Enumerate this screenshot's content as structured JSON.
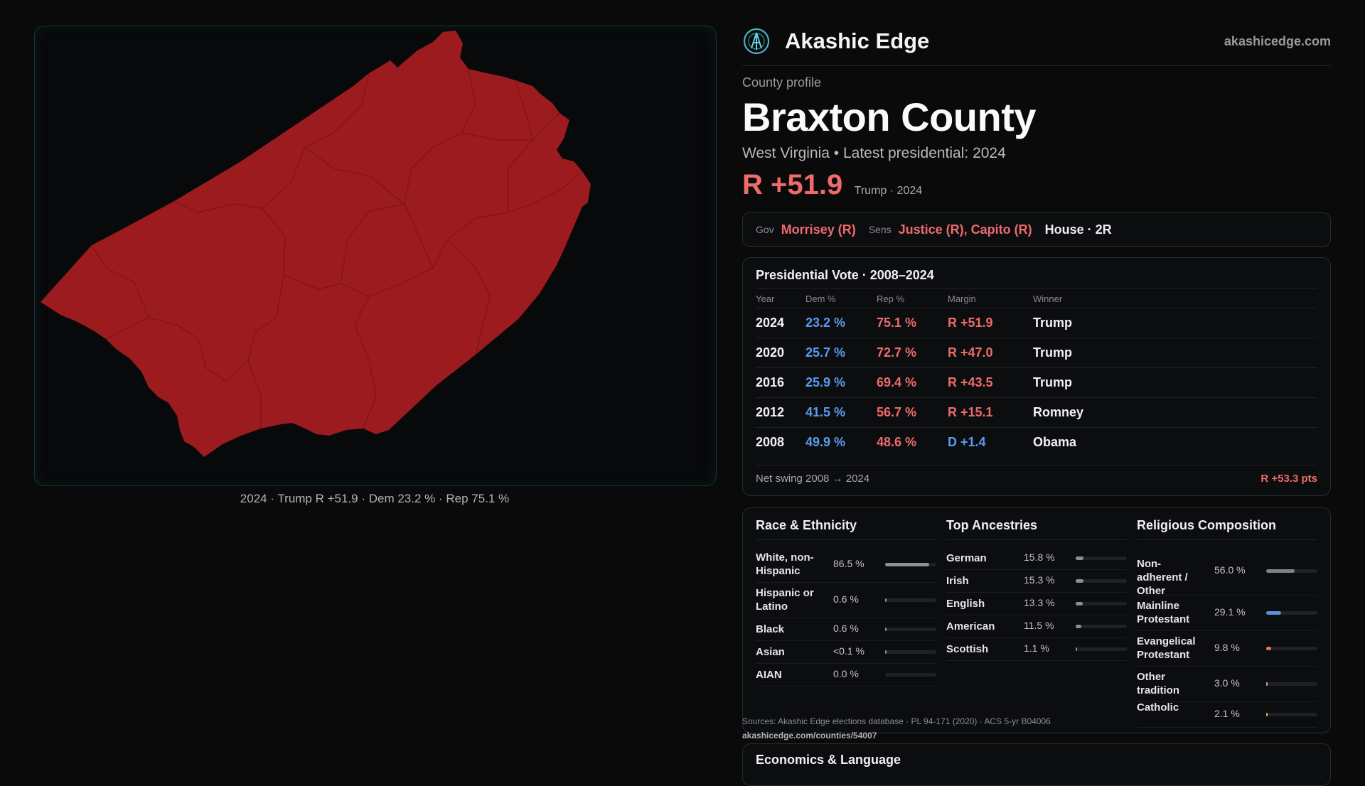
{
  "map": {
    "caption": "2024 · Trump R +51.9 · Dem 23.2 % · Rep 75.1 %",
    "fill_color": "#9b1b1f"
  },
  "brand": {
    "name": "Akashic Edge",
    "site": "akashicedge.com",
    "logo_icon": "akashic-logo-icon"
  },
  "profile": {
    "eyebrow": "County profile",
    "county": "Braxton County",
    "subtitle": "West Virginia • Latest presidential: 2024",
    "headline_margin": "R +51.9",
    "headline_winner": "Trump · 2024"
  },
  "officials": {
    "gov_label": "Gov",
    "gov": "Morrisey (R)",
    "sens_label": "Sens",
    "sens": "Justice (R), Capito (R)",
    "house": "House · 2R"
  },
  "presidential": {
    "title": "Presidential Vote · 2008–2024",
    "headers": [
      "Year",
      "Dem %",
      "Rep %",
      "Margin",
      "Winner"
    ],
    "rows": [
      {
        "year": "2024",
        "dem": "23.2 %",
        "rep": "75.1 %",
        "margin": "R +51.9",
        "party": "R",
        "winner": "Trump"
      },
      {
        "year": "2020",
        "dem": "25.7 %",
        "rep": "72.7 %",
        "margin": "R +47.0",
        "party": "R",
        "winner": "Trump"
      },
      {
        "year": "2016",
        "dem": "25.9 %",
        "rep": "69.4 %",
        "margin": "R +43.5",
        "party": "R",
        "winner": "Trump"
      },
      {
        "year": "2012",
        "dem": "41.5 %",
        "rep": "56.7 %",
        "margin": "R +15.1",
        "party": "R",
        "winner": "Romney"
      },
      {
        "year": "2008",
        "dem": "49.9 %",
        "rep": "48.6 %",
        "margin": "D +1.4",
        "party": "D",
        "winner": "Obama"
      }
    ],
    "swing_label": "Net swing 2008 → 2024",
    "swing_value": "R +53.3 pts"
  },
  "race": {
    "title": "Race & Ethnicity",
    "items": [
      {
        "label": "White, non-Hispanic",
        "value": "86.5 %",
        "pct": 86.5,
        "color": "#8d8f96"
      },
      {
        "label": "Hispanic or Latino",
        "value": "0.6 %",
        "pct": 0.6,
        "color": "#8d8f96"
      },
      {
        "label": "Black",
        "value": "0.6 %",
        "pct": 0.6,
        "color": "#8d8f96"
      },
      {
        "label": "Asian",
        "value": "<0.1 %",
        "pct": 0.05,
        "color": "#8d8f96"
      },
      {
        "label": "AIAN",
        "value": "0.0 %",
        "pct": 0,
        "color": "#8d8f96"
      }
    ]
  },
  "ancestry": {
    "title": "Top Ancestries",
    "items": [
      {
        "label": "German",
        "value": "15.8 %",
        "pct": 15.8,
        "color": "#8d8f96"
      },
      {
        "label": "Irish",
        "value": "15.3 %",
        "pct": 15.3,
        "color": "#8d8f96"
      },
      {
        "label": "English",
        "value": "13.3 %",
        "pct": 13.3,
        "color": "#8d8f96"
      },
      {
        "label": "American",
        "value": "11.5 %",
        "pct": 11.5,
        "color": "#8d8f96"
      },
      {
        "label": "Scottish",
        "value": "1.1 %",
        "pct": 1.1,
        "color": "#8d8f96"
      }
    ]
  },
  "religion": {
    "title": "Religious Composition",
    "items": [
      {
        "label": "Non-adherent / Other",
        "value": "56.0 %",
        "pct": 56.0,
        "color": "#7f828a"
      },
      {
        "label": "Mainline Protestant",
        "value": "29.1 %",
        "pct": 29.1,
        "color": "#5a8fe0"
      },
      {
        "label": "Evangelical Protestant",
        "value": "9.8 %",
        "pct": 9.8,
        "color": "#ef6b6b"
      },
      {
        "label": "Other tradition",
        "value": "3.0 %",
        "pct": 3.0,
        "color": "#b0b0b6"
      },
      {
        "label": "Catholic",
        "value": "2.1 %",
        "pct": 2.1,
        "color": "#e2b73f"
      }
    ]
  },
  "sources": {
    "text": "Sources: Akashic Edge elections database · PL 94-171 (2020) · ACS 5-yr B04006",
    "url": "akashicedge.com/counties/54007"
  },
  "economics": {
    "title": "Economics & Language"
  }
}
